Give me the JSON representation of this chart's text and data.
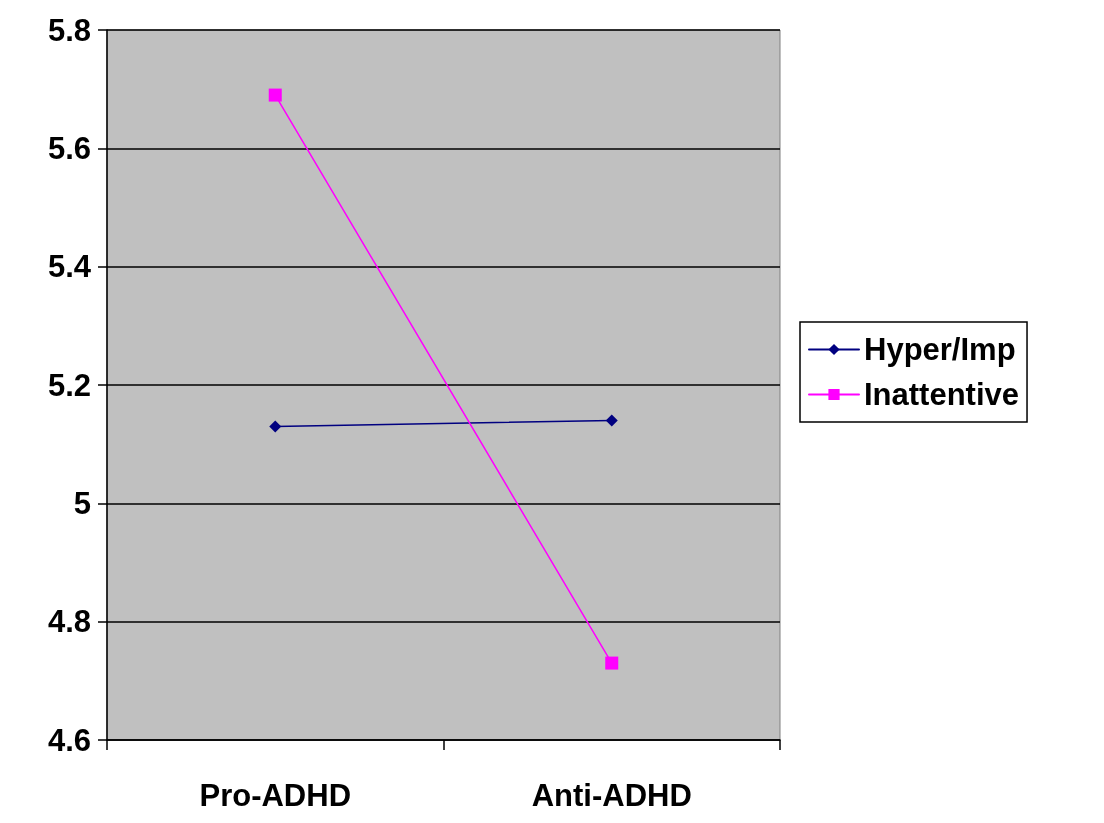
{
  "chart_data": {
    "type": "line",
    "categories": [
      "Pro-ADHD",
      "Anti-ADHD"
    ],
    "series": [
      {
        "name": "Hyper/Imp",
        "color": "#000080",
        "values": [
          5.13,
          5.14
        ],
        "marker": "diamond"
      },
      {
        "name": "Inattentive",
        "color": "#ff00ff",
        "values": [
          5.69,
          4.73
        ],
        "marker": "square"
      }
    ],
    "ylim": [
      4.6,
      5.8
    ],
    "yticks": [
      4.6,
      4.8,
      5,
      5.2,
      5.4,
      5.6,
      5.8
    ],
    "grid": "y",
    "legend": "right",
    "line_style": "solid"
  }
}
